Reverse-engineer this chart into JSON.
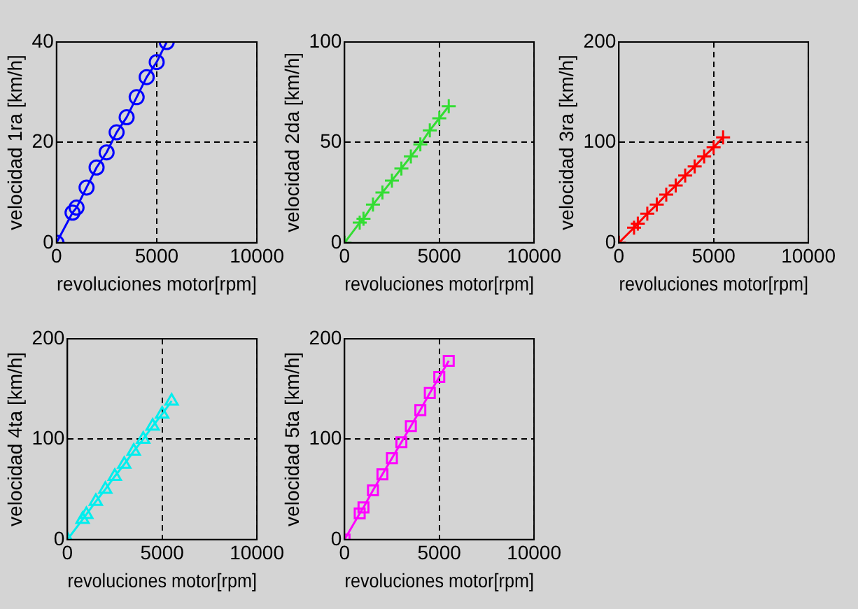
{
  "chart_data": [
    {
      "type": "line",
      "xlabel": "revoluciones motor[rpm]",
      "ylabel": "velocidad 1ra [km/h]",
      "x": [
        0,
        800,
        1000,
        1500,
        2000,
        2500,
        3000,
        3500,
        4000,
        4500,
        5000,
        5500
      ],
      "series": [
        {
          "color": "#0000ff",
          "values": [
            0,
            6,
            7,
            11,
            15,
            18,
            22,
            25,
            29,
            33,
            36,
            40
          ]
        }
      ],
      "marker": "circle",
      "line_style": "solid",
      "xlim": [
        0,
        10000
      ],
      "xticks": [
        0,
        5000,
        10000
      ],
      "ylim": [
        0,
        40
      ],
      "yticks": [
        0,
        20,
        40
      ],
      "grid": true,
      "legend": false
    },
    {
      "type": "line",
      "xlabel": "revoluciones motor[rpm]",
      "ylabel": "velocidad 2da [km/h]",
      "x": [
        0,
        800,
        1000,
        1500,
        2000,
        2500,
        3000,
        3500,
        4000,
        4500,
        5000,
        5500
      ],
      "series": [
        {
          "color": "#33dd33",
          "values": [
            0,
            10,
            12,
            19,
            25,
            31,
            37,
            43,
            49,
            56,
            62,
            68
          ]
        }
      ],
      "marker": "cross",
      "line_style": "solid",
      "xlim": [
        0,
        10000
      ],
      "xticks": [
        0,
        5000,
        10000
      ],
      "ylim": [
        0,
        100
      ],
      "yticks": [
        0,
        50,
        100
      ],
      "grid": true,
      "legend": false
    },
    {
      "type": "line",
      "xlabel": "revoluciones motor[rpm]",
      "ylabel": "velocidad 3ra [km/h]",
      "x": [
        0,
        800,
        1000,
        1500,
        2000,
        2500,
        3000,
        3500,
        4000,
        4500,
        5000,
        5500
      ],
      "series": [
        {
          "color": "#ff0000",
          "values": [
            0,
            15,
            19,
            29,
            38,
            48,
            57,
            67,
            76,
            86,
            95,
            105
          ]
        }
      ],
      "marker": "cross",
      "line_style": "solid",
      "xlim": [
        0,
        10000
      ],
      "xticks": [
        0,
        5000,
        10000
      ],
      "ylim": [
        0,
        200
      ],
      "yticks": [
        0,
        100,
        200
      ],
      "grid": true,
      "legend": false
    },
    {
      "type": "line",
      "xlabel": "revoluciones motor[rpm]",
      "ylabel": "velocidad 4ta [km/h]",
      "x": [
        0,
        800,
        1000,
        1500,
        2000,
        2500,
        3000,
        3500,
        4000,
        4500,
        5000,
        5500
      ],
      "series": [
        {
          "color": "#00eeee",
          "values": [
            0,
            20,
            25,
            38,
            50,
            63,
            75,
            88,
            100,
            113,
            125,
            138
          ]
        }
      ],
      "marker": "triangle",
      "line_style": "solid",
      "xlim": [
        0,
        10000
      ],
      "xticks": [
        0,
        5000,
        10000
      ],
      "ylim": [
        0,
        200
      ],
      "yticks": [
        0,
        100,
        200
      ],
      "grid": true,
      "legend": false
    },
    {
      "type": "line",
      "xlabel": "revoluciones motor[rpm]",
      "ylabel": "velocidad 5ta [km/h]",
      "x": [
        0,
        800,
        1000,
        1500,
        2000,
        2500,
        3000,
        3500,
        4000,
        4500,
        5000,
        5500
      ],
      "series": [
        {
          "color": "#ff00ff",
          "values": [
            0,
            26,
            32,
            49,
            65,
            81,
            97,
            113,
            129,
            146,
            162,
            178
          ]
        }
      ],
      "marker": "square",
      "line_style": "solid",
      "xlim": [
        0,
        10000
      ],
      "xticks": [
        0,
        5000,
        10000
      ],
      "ylim": [
        0,
        200
      ],
      "yticks": [
        0,
        100,
        200
      ],
      "grid": true,
      "legend": false
    }
  ]
}
